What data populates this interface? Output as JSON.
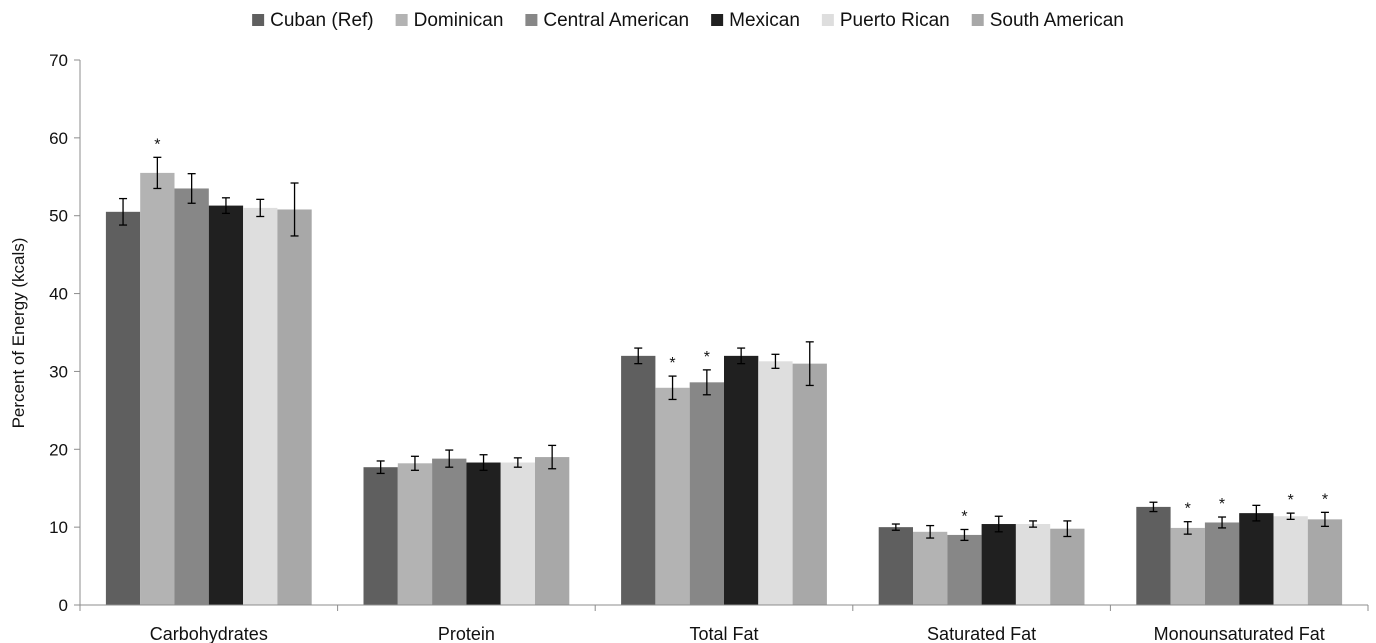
{
  "chart_data": {
    "type": "bar",
    "title": "",
    "xlabel": "",
    "ylabel": "Percent of Energy (kcals)",
    "ylim": [
      0,
      70
    ],
    "yticks": [
      0,
      10,
      20,
      30,
      40,
      50,
      60,
      70
    ],
    "grid": false,
    "legend_position": "top",
    "categories": [
      "Carbohydrates",
      "Protein",
      "Total Fat",
      "Saturated Fat",
      "Monounsaturated Fat"
    ],
    "significance_marker": "*",
    "series": [
      {
        "name": "Cuban (Ref)",
        "color": "#5f5f5f",
        "values": [
          50.5,
          17.7,
          32.0,
          10.0,
          12.6
        ],
        "error": [
          1.7,
          0.8,
          1.0,
          0.4,
          0.6
        ],
        "significant": [
          false,
          false,
          false,
          false,
          false
        ]
      },
      {
        "name": "Dominican",
        "color": "#b3b3b3",
        "values": [
          55.5,
          18.2,
          27.9,
          9.4,
          9.9
        ],
        "error": [
          2.0,
          0.9,
          1.5,
          0.8,
          0.8
        ],
        "significant": [
          true,
          false,
          true,
          false,
          true
        ]
      },
      {
        "name": "Central American",
        "color": "#878787",
        "values": [
          53.5,
          18.8,
          28.6,
          9.0,
          10.6
        ],
        "error": [
          1.9,
          1.1,
          1.6,
          0.7,
          0.7
        ],
        "significant": [
          false,
          false,
          true,
          true,
          true
        ]
      },
      {
        "name": "Mexican",
        "color": "#202020",
        "values": [
          51.3,
          18.3,
          32.0,
          10.4,
          11.8
        ],
        "error": [
          1.0,
          1.0,
          1.0,
          1.0,
          1.0
        ],
        "significant": [
          false,
          false,
          false,
          false,
          false
        ]
      },
      {
        "name": "Puerto Rican",
        "color": "#dedede",
        "values": [
          51.0,
          18.3,
          31.3,
          10.4,
          11.4
        ],
        "error": [
          1.1,
          0.6,
          0.9,
          0.4,
          0.4
        ],
        "significant": [
          false,
          false,
          false,
          false,
          true
        ]
      },
      {
        "name": "South American",
        "color": "#a8a8a8",
        "values": [
          50.8,
          19.0,
          31.0,
          9.8,
          11.0
        ],
        "error": [
          3.4,
          1.5,
          2.8,
          1.0,
          0.9
        ],
        "significant": [
          false,
          false,
          false,
          false,
          true
        ]
      }
    ]
  }
}
